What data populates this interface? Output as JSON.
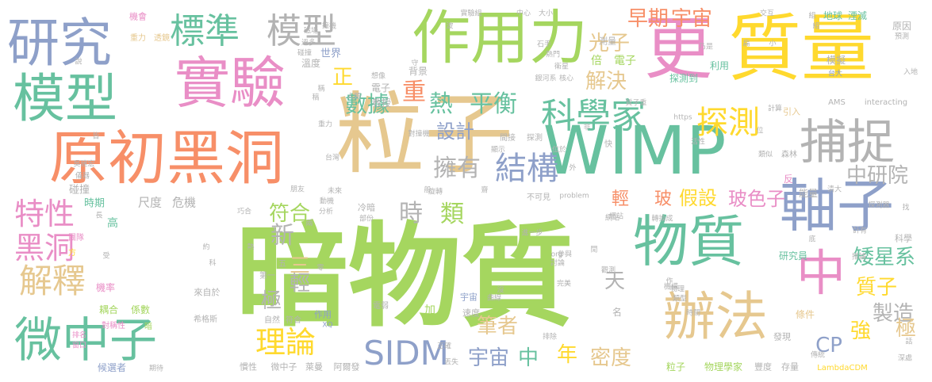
{
  "background": "#ffffff",
  "palette": [
    "#a5d65f",
    "#e6c88f",
    "#8ea0c9",
    "#f78f68",
    "#e98ec6",
    "#ffd92e",
    "#67c19f",
    "#b3b3b3"
  ],
  "words": [
    {
      "text": "暗物質",
      "color": "#a5d65f"
    },
    {
      "text": "粒子",
      "color": "#e6c88f"
    },
    {
      "text": "WIMP",
      "color": "#67c19f"
    },
    {
      "text": "質量",
      "color": "#ffd92e"
    },
    {
      "text": "更",
      "color": "#e98ec6"
    },
    {
      "text": "作用力",
      "color": "#a5d65f"
    },
    {
      "text": "實驗",
      "color": "#e98ec6"
    },
    {
      "text": "研究",
      "color": "#8ea0c9"
    },
    {
      "text": "模型",
      "color": "#67c19f"
    },
    {
      "text": "原初黑洞",
      "color": "#f78f68"
    },
    {
      "text": "物質",
      "color": "#67c19f"
    },
    {
      "text": "辦法",
      "color": "#e6c88f"
    },
    {
      "text": "軸子",
      "color": "#8ea0c9"
    },
    {
      "text": "中",
      "color": "#e98ec6"
    },
    {
      "text": "捕捉",
      "color": "#b3b3b3"
    },
    {
      "text": "微中子",
      "color": "#67c19f"
    },
    {
      "text": "標準",
      "color": "#67c19f"
    },
    {
      "text": "模型",
      "color": "#b3b3b3"
    },
    {
      "text": "科學家",
      "color": "#67c19f"
    },
    {
      "text": "探測",
      "color": "#ffd92e"
    },
    {
      "text": "SIDM",
      "color": "#8ea0c9"
    },
    {
      "text": "理論",
      "color": "#ffd92e"
    },
    {
      "text": "解釋",
      "color": "#e6c88f"
    },
    {
      "text": "特性",
      "color": "#e98ec6"
    },
    {
      "text": "黑洞",
      "color": "#e98ec6"
    },
    {
      "text": "結構",
      "color": "#8ea0c9"
    },
    {
      "text": "重",
      "color": "#f78f68"
    },
    {
      "text": "熱",
      "color": "#67c19f"
    },
    {
      "text": "平衡",
      "color": "#67c19f"
    },
    {
      "text": "光子",
      "color": "#e6c88f"
    },
    {
      "text": "早期",
      "color": "#f78f68"
    },
    {
      "text": "宇宙",
      "color": "#f78f68"
    },
    {
      "text": "解決",
      "color": "#e6c88f"
    },
    {
      "text": "數據",
      "color": "#67c19f"
    },
    {
      "text": "正",
      "color": "#ffd92e"
    },
    {
      "text": "擁有",
      "color": "#b3b3b3"
    },
    {
      "text": "設計",
      "color": "#8ea0c9"
    },
    {
      "text": "時",
      "color": "#b3b3b3"
    },
    {
      "text": "類",
      "color": "#a5d65f"
    },
    {
      "text": "符合",
      "color": "#a5d65f"
    },
    {
      "text": "新",
      "color": "#b3b3b3"
    },
    {
      "text": "三",
      "color": "#e6c88f"
    },
    {
      "text": "極",
      "color": "#b3b3b3"
    },
    {
      "text": "輕",
      "color": "#b3b3b3"
    },
    {
      "text": "天",
      "color": "#b3b3b3"
    },
    {
      "text": "筆者",
      "color": "#e6c88f"
    },
    {
      "text": "宇宙",
      "color": "#8ea0c9"
    },
    {
      "text": "中",
      "color": "#67c19f"
    },
    {
      "text": "年",
      "color": "#ffd92e"
    },
    {
      "text": "密度",
      "color": "#e6c88f"
    },
    {
      "text": "中研院",
      "color": "#b3b3b3"
    },
    {
      "text": "假設",
      "color": "#ffd92e"
    },
    {
      "text": "玻色子",
      "color": "#e98ec6"
    },
    {
      "text": "輕",
      "color": "#f78f68"
    },
    {
      "text": "玻",
      "color": "#f78f68"
    },
    {
      "text": "矮星系",
      "color": "#67c19f"
    },
    {
      "text": "質子",
      "color": "#ffd92e"
    },
    {
      "text": "製造",
      "color": "#b3b3b3"
    },
    {
      "text": "強",
      "color": "#ffd92e"
    },
    {
      "text": "極",
      "color": "#e6c88f"
    },
    {
      "text": "CP",
      "color": "#8ea0c9"
    },
    {
      "text": "尺度",
      "color": "#b3b3b3"
    },
    {
      "text": "危機",
      "color": "#b3b3b3"
    },
    {
      "text": "時期",
      "color": "#67c19f"
    },
    {
      "text": "碰撞",
      "color": "#b3b3b3"
    },
    {
      "text": "高",
      "color": "#67c19f"
    },
    {
      "text": "團隊",
      "color": "#e98ec6"
    },
    {
      "text": "方",
      "color": "#ffd92e"
    },
    {
      "text": "機率",
      "color": "#e98ec6"
    },
    {
      "text": "耦合",
      "color": "#a5d65f"
    },
    {
      "text": "係數",
      "color": "#a5d65f"
    },
    {
      "text": "對稱性",
      "color": "#e98ec6"
    },
    {
      "text": "暗",
      "color": "#a5d65f"
    },
    {
      "text": "候選者",
      "color": "#8ea0c9"
    },
    {
      "text": "排名",
      "color": "#e98ec6"
    },
    {
      "text": "窗口",
      "color": "#e98ec6"
    },
    {
      "text": "機會",
      "color": "#e98ec6"
    },
    {
      "text": "重力",
      "color": "#e6c88f"
    },
    {
      "text": "透鏡",
      "color": "#e6c88f"
    },
    {
      "text": "世界",
      "color": "#8ea0c9"
    },
    {
      "text": "溫度",
      "color": "#b3b3b3"
    },
    {
      "text": "碰撞",
      "color": "#b3b3b3"
    },
    {
      "text": "電子",
      "color": "#b3b3b3"
    },
    {
      "text": "教授",
      "color": "#b3b3b3"
    },
    {
      "text": "背景",
      "color": "#b3b3b3"
    },
    {
      "text": "倍",
      "color": "#a5d65f"
    },
    {
      "text": "電子",
      "color": "#a5d65f"
    },
    {
      "text": "測量",
      "color": "#b3b3b3"
    },
    {
      "text": "乃是",
      "color": "#b3b3b3"
    },
    {
      "text": "探測到",
      "color": "#67c19f"
    },
    {
      "text": "利用",
      "color": "#67c19f"
    },
    {
      "text": "模擬",
      "color": "#b3b3b3"
    },
    {
      "text": "地球",
      "color": "#67c19f"
    },
    {
      "text": "湮滅",
      "color": "#67c19f"
    },
    {
      "text": "原因",
      "color": "#b3b3b3"
    },
    {
      "text": "台大",
      "color": "#8ea0c9"
    },
    {
      "text": "研究員",
      "color": "#67c19f"
    },
    {
      "text": "科學",
      "color": "#b3b3b3"
    },
    {
      "text": "來自於",
      "color": "#b3b3b3"
    },
    {
      "text": "自然",
      "color": "#b3b3b3"
    },
    {
      "text": "符合",
      "color": "#b3b3b3"
    },
    {
      "text": "希格斯",
      "color": "#b3b3b3"
    },
    {
      "text": "第一",
      "color": "#b3b3b3"
    },
    {
      "text": "五",
      "color": "#b3b3b3"
    },
    {
      "text": "作用",
      "color": "#8ea0c9"
    },
    {
      "text": "XQ",
      "color": "#8ea0c9"
    },
    {
      "text": "電弱",
      "color": "#b3b3b3"
    },
    {
      "text": "加",
      "color": "#a5d65f"
    },
    {
      "text": "宇宙",
      "color": "#8ea0c9"
    },
    {
      "text": "速度",
      "color": "#b3b3b3"
    },
    {
      "text": "慣性",
      "color": "#b3b3b3"
    },
    {
      "text": "微中子",
      "color": "#b3b3b3"
    },
    {
      "text": "萊曼",
      "color": "#b3b3b3"
    },
    {
      "text": "阿爾發",
      "color": "#b3b3b3"
    },
    {
      "text": "粒子",
      "color": "#a5d65f"
    },
    {
      "text": "物理學家",
      "color": "#a5d65f"
    },
    {
      "text": "豐度",
      "color": "#b3b3b3"
    },
    {
      "text": "存量",
      "color": "#b3b3b3"
    },
    {
      "text": "LambdaCDM",
      "color": "#ffd92e"
    },
    {
      "text": "條件",
      "color": "#e6c88f"
    },
    {
      "text": "發現",
      "color": "#b3b3b3"
    },
    {
      "text": "能量",
      "color": "#b3b3b3"
    },
    {
      "text": "反",
      "color": "#e98ec6"
    },
    {
      "text": "引入",
      "color": "#e6c88f"
    },
    {
      "text": "計算",
      "color": "#b3b3b3"
    },
    {
      "text": "森林",
      "color": "#b3b3b3"
    },
    {
      "text": "類似",
      "color": "#b3b3b3"
    },
    {
      "text": "探測器",
      "color": "#b3b3b3"
    },
    {
      "text": "清大",
      "color": "#b3b3b3"
    },
    {
      "text": "推論",
      "color": "#b3b3b3"
    },
    {
      "text": "預測",
      "color": "#b3b3b3"
    },
    {
      "text": "入地",
      "color": "#b3b3b3"
    },
    {
      "text": "AMS",
      "color": "#b3b3b3"
    },
    {
      "text": "interacting",
      "color": "#b3b3b3"
    },
    {
      "text": "https",
      "color": "#b3b3b3"
    },
    {
      "text": "problem",
      "color": "#b3b3b3"
    },
    {
      "text": "org",
      "color": "#b3b3b3"
    },
    {
      "text": "不可見",
      "color": "#b3b3b3"
    },
    {
      "text": "網站",
      "color": "#b3b3b3"
    },
    {
      "text": "轉換成",
      "color": "#b3b3b3"
    },
    {
      "text": "進一步",
      "color": "#b3b3b3"
    },
    {
      "text": "參與",
      "color": "#b3b3b3"
    },
    {
      "text": "觀測",
      "color": "#b3b3b3"
    },
    {
      "text": "完美",
      "color": "#b3b3b3"
    },
    {
      "text": "曲線",
      "color": "#b3b3b3"
    },
    {
      "text": "排除",
      "color": "#b3b3b3"
    },
    {
      "text": "正確",
      "color": "#b3b3b3"
    },
    {
      "text": "丟失",
      "color": "#b3b3b3"
    },
    {
      "text": "名",
      "color": "#b3b3b3"
    },
    {
      "text": "時間",
      "color": "#b3b3b3"
    },
    {
      "text": "類型",
      "color": "#b3b3b3"
    },
    {
      "text": "物理",
      "color": "#b3b3b3"
    },
    {
      "text": "機構",
      "color": "#b3b3b3"
    },
    {
      "text": "期待",
      "color": "#b3b3b3"
    },
    {
      "text": "傳統",
      "color": "#b3b3b3"
    },
    {
      "text": "吳建宏",
      "color": "#b3b3b3"
    },
    {
      "text": "儀器",
      "color": "#b3b3b3"
    },
    {
      "text": "朋友",
      "color": "#b3b3b3"
    },
    {
      "text": "台灣",
      "color": "#b3b3b3"
    },
    {
      "text": "動機",
      "color": "#b3b3b3"
    },
    {
      "text": "分析",
      "color": "#b3b3b3"
    },
    {
      "text": "巧合",
      "color": "#b3b3b3"
    },
    {
      "text": "冷暗",
      "color": "#b3b3b3"
    },
    {
      "text": "部份",
      "color": "#b3b3b3"
    },
    {
      "text": "未來",
      "color": "#b3b3b3"
    },
    {
      "text": "對撞機",
      "color": "#b3b3b3"
    },
    {
      "text": "間接",
      "color": "#b3b3b3"
    },
    {
      "text": "探測",
      "color": "#b3b3b3"
    },
    {
      "text": "顯示",
      "color": "#b3b3b3"
    },
    {
      "text": "位於",
      "color": "#b3b3b3"
    },
    {
      "text": "快",
      "color": "#b3b3b3"
    },
    {
      "text": "活性",
      "color": "#b3b3b3"
    },
    {
      "text": "實驗組",
      "color": "#b3b3b3"
    },
    {
      "text": "中心",
      "color": "#b3b3b3"
    },
    {
      "text": "大小",
      "color": "#b3b3b3"
    },
    {
      "text": "交互",
      "color": "#b3b3b3"
    },
    {
      "text": "石手",
      "color": "#b3b3b3"
    },
    {
      "text": "熱門",
      "color": "#b3b3b3"
    },
    {
      "text": "衛星",
      "color": "#b3b3b3"
    },
    {
      "text": "銀河系",
      "color": "#b3b3b3"
    },
    {
      "text": "核心",
      "color": "#b3b3b3"
    },
    {
      "text": "質子重",
      "color": "#b3b3b3"
    },
    {
      "text": "撞機",
      "color": "#b3b3b3"
    },
    {
      "text": "過多",
      "color": "#b3b3b3"
    },
    {
      "text": "磁場",
      "color": "#b3b3b3"
    },
    {
      "text": "想像",
      "color": "#b3b3b3"
    },
    {
      "text": "守",
      "color": "#b3b3b3"
    },
    {
      "text": "稿",
      "color": "#b3b3b3"
    },
    {
      "text": "說",
      "color": "#b3b3b3"
    },
    {
      "text": "波",
      "color": "#b3b3b3"
    },
    {
      "text": "組",
      "color": "#b3b3b3"
    },
    {
      "text": "底",
      "color": "#b3b3b3"
    },
    {
      "text": "找",
      "color": "#b3b3b3"
    },
    {
      "text": "位",
      "color": "#b3b3b3"
    },
    {
      "text": "非",
      "color": "#b3b3b3"
    },
    {
      "text": "外",
      "color": "#b3b3b3"
    },
    {
      "text": "般",
      "color": "#b3b3b3"
    },
    {
      "text": "旋轉",
      "color": "#b3b3b3"
    },
    {
      "text": "齋",
      "color": "#b3b3b3"
    },
    {
      "text": "受",
      "color": "#b3b3b3"
    },
    {
      "text": "皆",
      "color": "#b3b3b3"
    },
    {
      "text": "兩",
      "color": "#b3b3b3"
    },
    {
      "text": "約",
      "color": "#b3b3b3"
    },
    {
      "text": "熱",
      "color": "#b3b3b3"
    },
    {
      "text": "零",
      "color": "#b3b3b3"
    },
    {
      "text": "作",
      "color": "#b3b3b3"
    },
    {
      "text": "沒",
      "color": "#b3b3b3"
    },
    {
      "text": "閒",
      "color": "#b3b3b3"
    },
    {
      "text": "話",
      "color": "#b3b3b3"
    },
    {
      "text": "深處",
      "color": "#b3b3b3"
    },
    {
      "text": "計有",
      "color": "#b3b3b3"
    },
    {
      "text": "網站",
      "color": "#b3b3b3"
    },
    {
      "text": "討論",
      "color": "#b3b3b3"
    },
    {
      "text": "長",
      "color": "#b3b3b3"
    },
    {
      "text": "科",
      "color": "#b3b3b3"
    },
    {
      "text": "組",
      "color": "#b3b3b3"
    },
    {
      "text": "人類",
      "color": "#b3b3b3"
    },
    {
      "text": "稱",
      "color": "#b3b3b3"
    },
    {
      "text": "重力",
      "color": "#b3b3b3"
    },
    {
      "text": "扁",
      "color": "#b3b3b3"
    },
    {
      "text": "小",
      "color": "#b3b3b3"
    }
  ]
}
